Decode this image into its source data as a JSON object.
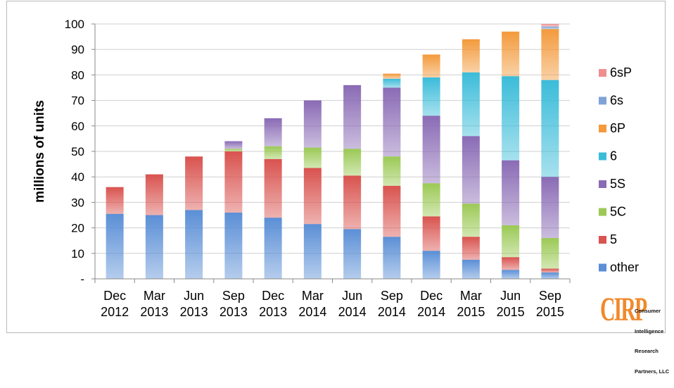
{
  "chart_data": {
    "type": "bar",
    "stacked": true,
    "title": "",
    "xlabel": "",
    "ylabel": "millions of units",
    "ylim": [
      0,
      100
    ],
    "yticks": [
      0,
      10,
      20,
      30,
      40,
      50,
      60,
      70,
      80,
      90,
      100
    ],
    "ytick_labels": [
      "-",
      "10",
      "20",
      "30",
      "40",
      "50",
      "60",
      "70",
      "80",
      "90",
      "100"
    ],
    "grid": true,
    "legend_position": "right",
    "categories": [
      [
        "Dec",
        "2012"
      ],
      [
        "Mar",
        "2013"
      ],
      [
        "Jun",
        "2013"
      ],
      [
        "Sep",
        "2013"
      ],
      [
        "Dec",
        "2013"
      ],
      [
        "Mar",
        "2014"
      ],
      [
        "Jun",
        "2014"
      ],
      [
        "Sep",
        "2014"
      ],
      [
        "Dec",
        "2014"
      ],
      [
        "Mar",
        "2015"
      ],
      [
        "Jun",
        "2015"
      ],
      [
        "Sep",
        "2015"
      ]
    ],
    "series": [
      {
        "name": "other",
        "color": "#5b8fd6",
        "values": [
          25.5,
          25,
          27,
          26,
          24,
          21.5,
          19.5,
          16.5,
          11,
          7.5,
          3.5,
          2.5
        ]
      },
      {
        "name": "5",
        "color": "#d9534f",
        "values": [
          10.5,
          16,
          21,
          24,
          23,
          22,
          21,
          20,
          13.5,
          9,
          5,
          1.5
        ]
      },
      {
        "name": "5C",
        "color": "#9bc955",
        "values": [
          0,
          0,
          0,
          1,
          5,
          8,
          10.5,
          11.5,
          13,
          13,
          12.5,
          12
        ]
      },
      {
        "name": "5S",
        "color": "#8a6bb5",
        "values": [
          0,
          0,
          0,
          3,
          11,
          18.5,
          25,
          27,
          26.5,
          26.5,
          25.5,
          24
        ]
      },
      {
        "name": "6",
        "color": "#3bbcd9",
        "values": [
          0,
          0,
          0,
          0,
          0,
          0,
          0,
          3.5,
          15,
          25,
          33,
          38
        ]
      },
      {
        "name": "6P",
        "color": "#f39a3c",
        "values": [
          0,
          0,
          0,
          0,
          0,
          0,
          0,
          2,
          9,
          13,
          17.5,
          20
        ]
      },
      {
        "name": "6s",
        "color": "#7fa3d6",
        "values": [
          0,
          0,
          0,
          0,
          0,
          0,
          0,
          0,
          0,
          0,
          0,
          1
        ]
      },
      {
        "name": "6sP",
        "color": "#ef8f8f",
        "values": [
          0,
          0,
          0,
          0,
          0,
          0,
          0,
          0,
          0,
          0,
          0,
          1
        ]
      }
    ]
  },
  "logo": {
    "mark": "CIRP",
    "text": [
      "Consumer",
      "Intelligence",
      "Research",
      "Partners, LLC"
    ]
  }
}
